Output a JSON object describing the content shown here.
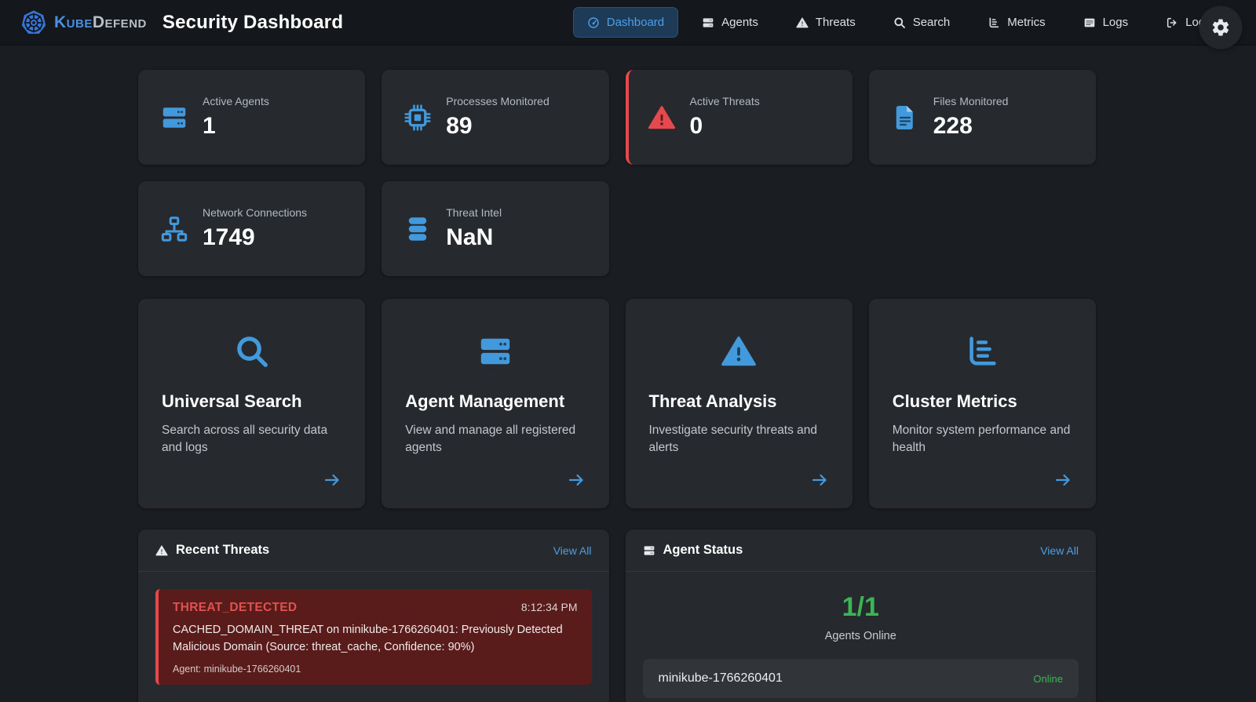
{
  "brand": {
    "name_primary": "Kube",
    "name_secondary": "Defend",
    "title": "Security Dashboard",
    "logo_icon": "kubernetes-logo-icon"
  },
  "nav": {
    "items": [
      {
        "label": "Dashboard",
        "icon": "gauge-icon",
        "active": true
      },
      {
        "label": "Agents",
        "icon": "server-icon",
        "active": false
      },
      {
        "label": "Threats",
        "icon": "warning-icon",
        "active": false
      },
      {
        "label": "Search",
        "icon": "search-icon",
        "active": false
      },
      {
        "label": "Metrics",
        "icon": "chart-bars-icon",
        "active": false
      },
      {
        "label": "Logs",
        "icon": "logs-icon",
        "active": false
      },
      {
        "label": "Logout",
        "icon": "logout-icon",
        "active": false
      }
    ]
  },
  "settings": {
    "icon": "gear-icon"
  },
  "stats": [
    {
      "label": "Active Agents",
      "value": "1",
      "icon": "server-icon",
      "alert": false
    },
    {
      "label": "Processes Monitored",
      "value": "89",
      "icon": "cpu-icon",
      "alert": false
    },
    {
      "label": "Active Threats",
      "value": "0",
      "icon": "warning-icon",
      "alert": true
    },
    {
      "label": "Files Monitored",
      "value": "228",
      "icon": "file-icon",
      "alert": false
    },
    {
      "label": "Network Connections",
      "value": "1749",
      "icon": "network-icon",
      "alert": false
    },
    {
      "label": "Threat Intel",
      "value": "NaN",
      "icon": "database-icon",
      "alert": false
    }
  ],
  "features": [
    {
      "title": "Universal Search",
      "description": "Search across all security data and logs",
      "icon": "search-icon"
    },
    {
      "title": "Agent Management",
      "description": "View and manage all registered agents",
      "icon": "server-icon"
    },
    {
      "title": "Threat Analysis",
      "description": "Investigate security threats and alerts",
      "icon": "warning-icon"
    },
    {
      "title": "Cluster Metrics",
      "description": "Monitor system performance and health",
      "icon": "chart-bars-icon"
    }
  ],
  "panels": {
    "recent_threats": {
      "title": "Recent Threats",
      "icon": "warning-icon",
      "view_all": "View All",
      "threats": [
        {
          "type": "THREAT_DETECTED",
          "time": "8:12:34 PM",
          "message": "CACHED_DOMAIN_THREAT on minikube-1766260401: Previously Detected Malicious Domain (Source: threat_cache, Confidence: 90%)",
          "agent": "Agent: minikube-1766260401"
        }
      ]
    },
    "agent_status": {
      "title": "Agent Status",
      "icon": "server-icon",
      "view_all": "View All",
      "count": "1/1",
      "count_label": "Agents Online",
      "agents": [
        {
          "name": "minikube-1766260401",
          "status": "Online"
        }
      ]
    }
  },
  "colors": {
    "accent": "#429add",
    "accent_text": "#4d9fe8",
    "danger": "#e5484d",
    "danger_bg": "#591c1a",
    "success": "#3cb554",
    "card_bg": "#26292e",
    "page_bg": "#1a1d21",
    "navbar_bg": "#14171b"
  }
}
